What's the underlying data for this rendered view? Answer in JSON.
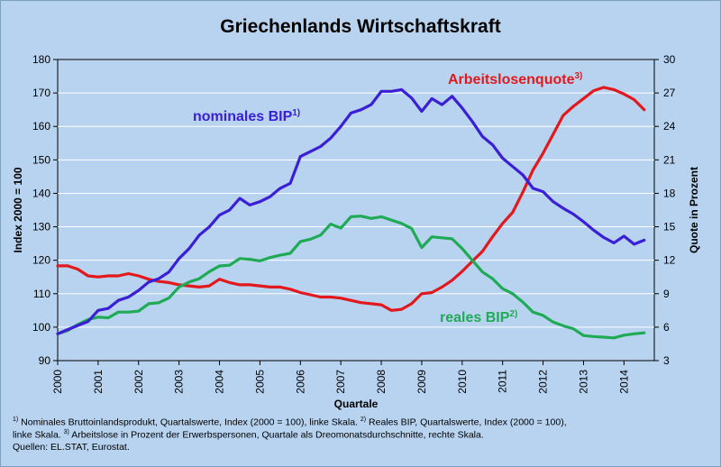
{
  "chart_data": {
    "type": "line",
    "title": "Griechenlands Wirtschaftskraft",
    "xlabel": "Quartale",
    "ylabel_left": "Index 2000 = 100",
    "ylabel_right": "Quote in Prozent",
    "ylim_left": [
      90,
      180
    ],
    "ylim_right": [
      3,
      30
    ],
    "yticks_left": [
      "90",
      "100",
      "110",
      "120",
      "130",
      "140",
      "150",
      "160",
      "170",
      "180"
    ],
    "yticks_right": [
      "3",
      "6",
      "9",
      "12",
      "15",
      "18",
      "21",
      "24",
      "27",
      "30"
    ],
    "xlim": [
      2000,
      2014.75
    ],
    "xticks": [
      "2000",
      "2001",
      "2002",
      "2003",
      "2004",
      "2005",
      "2006",
      "2007",
      "2008",
      "2009",
      "2010",
      "2011",
      "2012",
      "2013",
      "2014"
    ],
    "grid": true,
    "series": [
      {
        "name": "nominales BIP",
        "footnote_mark": "1)",
        "color": "#3a1fd6",
        "axis": "left",
        "x": [
          2000,
          2000.25,
          2000.5,
          2000.75,
          2001,
          2001.25,
          2001.5,
          2001.75,
          2002,
          2002.25,
          2002.5,
          2002.75,
          2003,
          2003.25,
          2003.5,
          2003.75,
          2004,
          2004.25,
          2004.5,
          2004.75,
          2005,
          2005.25,
          2005.5,
          2005.75,
          2006,
          2006.25,
          2006.5,
          2006.75,
          2007,
          2007.25,
          2007.5,
          2007.75,
          2008,
          2008.25,
          2008.5,
          2008.75,
          2009,
          2009.25,
          2009.5,
          2009.75,
          2010,
          2010.25,
          2010.5,
          2010.75,
          2011,
          2011.25,
          2011.5,
          2011.75,
          2012,
          2012.25,
          2012.5,
          2012.75,
          2013,
          2013.25,
          2013.5,
          2013.75,
          2014,
          2014.25,
          2014.5
        ],
        "y": [
          98,
          99.3,
          100.5,
          101.7,
          105,
          105.6,
          108,
          109,
          111,
          113.5,
          114.5,
          116.5,
          120.5,
          123.5,
          127.5,
          130,
          133.5,
          135,
          138.5,
          136.5,
          137.5,
          139,
          141.5,
          143,
          151,
          152.5,
          154,
          156.5,
          160,
          164,
          165,
          166.5,
          170.5,
          170.5,
          171,
          168.5,
          164.5,
          168.3,
          166.5,
          169,
          165.5,
          161.5,
          157,
          154.5,
          150.5,
          148,
          145.5,
          141.5,
          140.5,
          137.5,
          135.5,
          133.8,
          131.5,
          129,
          126.8,
          125.2,
          127.2,
          124.8,
          126
        ]
      },
      {
        "name": "reales BIP",
        "footnote_mark": "2)",
        "color": "#1fab55",
        "axis": "left",
        "x": [
          2000,
          2000.25,
          2000.5,
          2000.75,
          2001,
          2001.25,
          2001.5,
          2001.75,
          2002,
          2002.25,
          2002.5,
          2002.75,
          2003,
          2003.25,
          2003.5,
          2003.75,
          2004,
          2004.25,
          2004.5,
          2004.75,
          2005,
          2005.25,
          2005.5,
          2005.75,
          2006,
          2006.25,
          2006.5,
          2006.75,
          2007,
          2007.25,
          2007.5,
          2007.75,
          2008,
          2008.25,
          2008.5,
          2008.75,
          2009,
          2009.25,
          2009.5,
          2009.75,
          2010,
          2010.25,
          2010.5,
          2010.75,
          2011,
          2011.25,
          2011.5,
          2011.75,
          2012,
          2012.25,
          2012.5,
          2012.75,
          2013,
          2013.25,
          2013.5,
          2013.75,
          2014,
          2014.25,
          2014.5
        ],
        "y": [
          98,
          99,
          100.8,
          102.3,
          103,
          102.8,
          104.5,
          104.5,
          104.8,
          107,
          107.3,
          108.7,
          112,
          113.5,
          114.5,
          116.6,
          118.3,
          118.5,
          120.5,
          120.3,
          119.8,
          120.8,
          121.5,
          122.1,
          125.6,
          126.3,
          127.5,
          130.8,
          129.6,
          133,
          133.2,
          132.5,
          133,
          132,
          131,
          129.5,
          123.8,
          127,
          126.7,
          126.4,
          123.5,
          120,
          116.5,
          114.5,
          111.5,
          110,
          107.5,
          104.5,
          103.5,
          101.5,
          100.4,
          99.5,
          97.5,
          97.2,
          97,
          96.8,
          97.6,
          98,
          98.3
        ]
      },
      {
        "name": "Arbeitslosenquote",
        "footnote_mark": "3)",
        "color": "#e2191c",
        "axis": "right",
        "x": [
          2000,
          2000.25,
          2000.5,
          2000.75,
          2001,
          2001.25,
          2001.5,
          2001.75,
          2002,
          2002.25,
          2002.5,
          2002.75,
          2003,
          2003.25,
          2003.5,
          2003.75,
          2004,
          2004.25,
          2004.5,
          2004.75,
          2005,
          2005.25,
          2005.5,
          2005.75,
          2006,
          2006.25,
          2006.5,
          2006.75,
          2007,
          2007.25,
          2007.5,
          2007.75,
          2008,
          2008.25,
          2008.5,
          2008.75,
          2009,
          2009.25,
          2009.5,
          2009.75,
          2010,
          2010.25,
          2010.5,
          2010.75,
          2011,
          2011.25,
          2011.5,
          2011.75,
          2012,
          2012.25,
          2012.5,
          2012.75,
          2013,
          2013.25,
          2013.5,
          2013.75,
          2014,
          2014.25,
          2014.5
        ],
        "y": [
          11.5,
          11.5,
          11.2,
          10.6,
          10.5,
          10.6,
          10.6,
          10.8,
          10.6,
          10.3,
          10.1,
          10,
          9.8,
          9.7,
          9.6,
          9.7,
          10.3,
          10,
          9.8,
          9.8,
          9.7,
          9.6,
          9.6,
          9.4,
          9.1,
          8.9,
          8.7,
          8.7,
          8.6,
          8.4,
          8.2,
          8.1,
          8,
          7.5,
          7.6,
          8.1,
          9,
          9.1,
          9.6,
          10.2,
          11,
          11.9,
          12.8,
          14.1,
          15.3,
          16.3,
          18.1,
          20.1,
          21.6,
          23.3,
          25,
          25.8,
          26.5,
          27.2,
          27.5,
          27.3,
          26.9,
          26.4,
          25.5
        ]
      }
    ],
    "annotations": {
      "nominal": "nominales BIP",
      "real": "reales BIP",
      "unemployment": "Arbeitslosenquote"
    }
  },
  "footnotes": {
    "line1_mark": "1)",
    "line1_a": " Nominales Bruttoinlandsprodukt, Quartalswerte, Index (2000 = 100), linke Skala. ",
    "line1_mark2": "2)",
    "line1_b": " Reales BIP, Quartalswerte, Index (2000 = 100),",
    "line2_a": "linke Skala. ",
    "line2_mark3": "3)",
    "line2_b": " Arbeitslose in Prozent der Erwerbspersonen, Quartale als Dreomonatsdurchschnitte, rechte Skala.",
    "line3": "Quellen: EL.STAT, Eurostat."
  }
}
